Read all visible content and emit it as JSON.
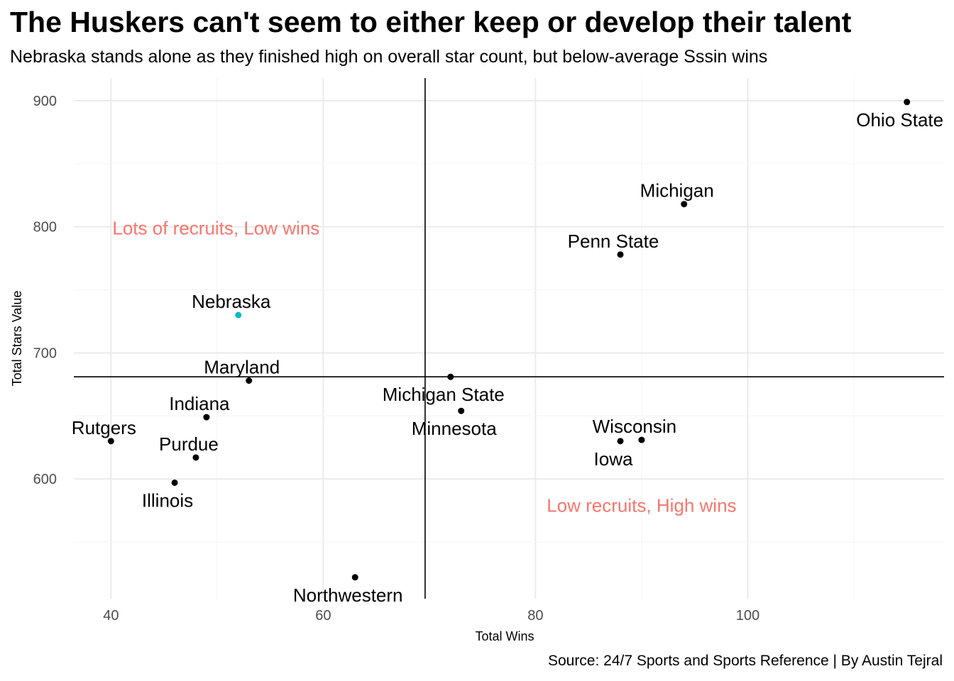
{
  "title": "The Huskers can't seem to either keep or develop their talent",
  "subtitle": "Nebraska stands alone as they finished high on overall star count, but below-average Sssin wins",
  "caption": "Source: 24/7 Sports and Sports Reference | By Austin Tejral",
  "chart_data": {
    "type": "scatter",
    "xlabel": "Total Wins",
    "ylabel": "Total Stars Value",
    "xlim": [
      36.5,
      118.5
    ],
    "ylim": [
      505,
      918
    ],
    "x_ticks": [
      40,
      60,
      80,
      100
    ],
    "y_ticks": [
      600,
      700,
      800,
      900
    ],
    "grid": true,
    "reference_lines": {
      "x": 69.6,
      "y": 681
    },
    "highlight_color": "#00BFC4",
    "point_color": "#000000",
    "annotation_color": "#F8766D",
    "points": [
      {
        "team": "Ohio State",
        "wins": 115,
        "stars": 899,
        "label_pos": "below"
      },
      {
        "team": "Michigan",
        "wins": 94,
        "stars": 818,
        "label_pos": "above"
      },
      {
        "team": "Penn State",
        "wins": 88,
        "stars": 778,
        "label_pos": "above"
      },
      {
        "team": "Nebraska",
        "wins": 52,
        "stars": 730,
        "label_pos": "above",
        "highlight": true
      },
      {
        "team": "Maryland",
        "wins": 53,
        "stars": 678,
        "label_pos": "above"
      },
      {
        "team": "Michigan State",
        "wins": 72,
        "stars": 681,
        "label_pos": "below"
      },
      {
        "team": "Minnesota",
        "wins": 73,
        "stars": 654,
        "label_pos": "below"
      },
      {
        "team": "Indiana",
        "wins": 49,
        "stars": 649,
        "label_pos": "above"
      },
      {
        "team": "Wisconsin",
        "wins": 90,
        "stars": 631,
        "label_pos": "above"
      },
      {
        "team": "Iowa",
        "wins": 88,
        "stars": 630,
        "label_pos": "below"
      },
      {
        "team": "Rutgers",
        "wins": 40,
        "stars": 630,
        "label_pos": "above"
      },
      {
        "team": "Purdue",
        "wins": 48,
        "stars": 617,
        "label_pos": "above"
      },
      {
        "team": "Illinois",
        "wins": 46,
        "stars": 597,
        "label_pos": "below"
      },
      {
        "team": "Northwestern",
        "wins": 63,
        "stars": 522,
        "label_pos": "below"
      }
    ],
    "annotations": [
      {
        "text": "Lots of recruits, Low wins",
        "x": 49.9,
        "y": 799
      },
      {
        "text": "Low recruits, High wins",
        "x": 90,
        "y": 579
      }
    ]
  }
}
